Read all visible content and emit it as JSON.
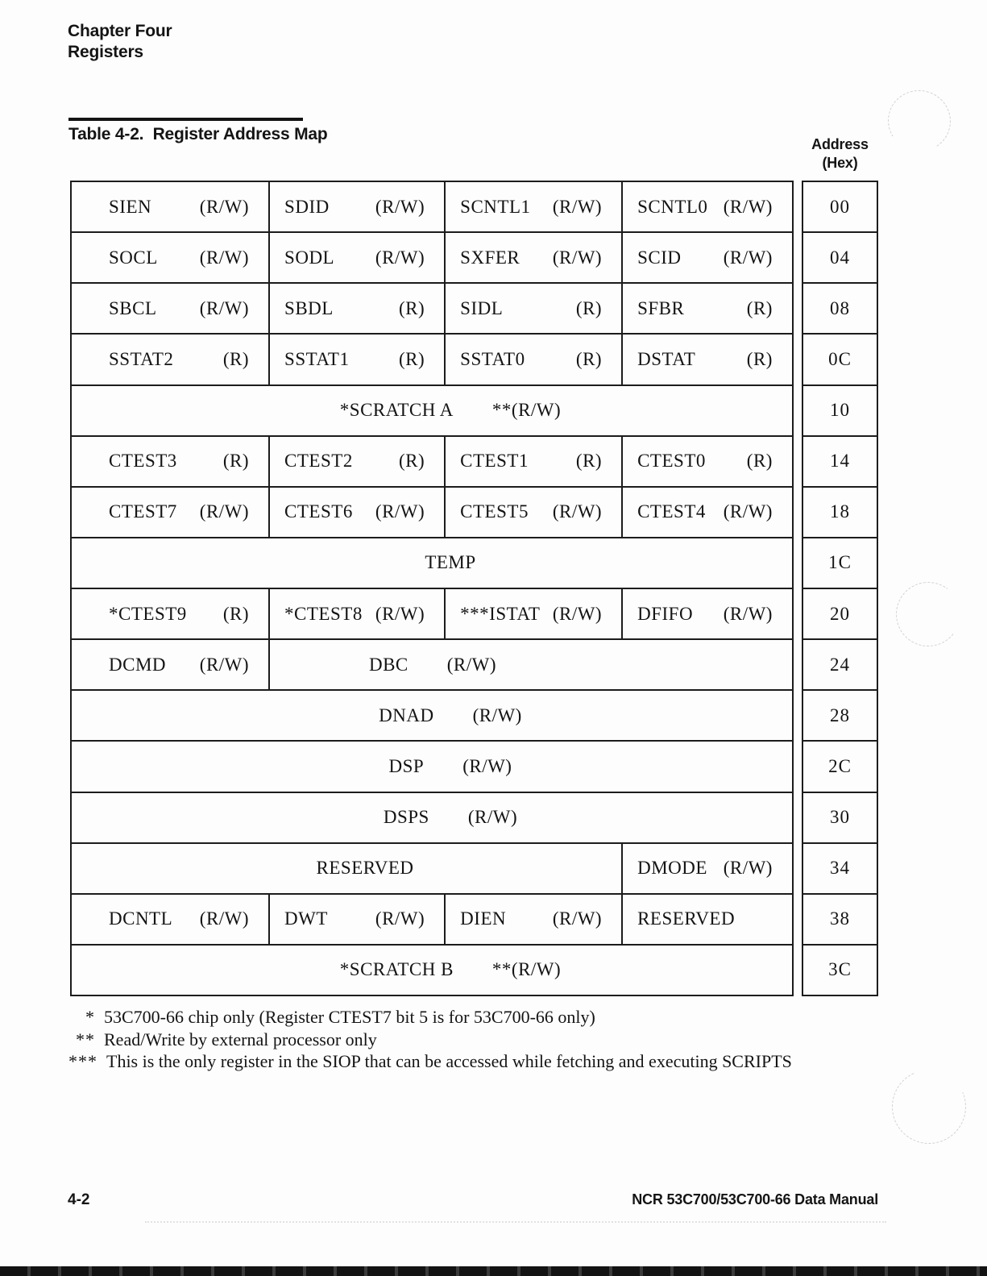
{
  "header": {
    "chapter": "Chapter Four",
    "section": "Registers"
  },
  "table": {
    "caption": "Table 4-2.  Register Address Map",
    "address_header_line1": "Address",
    "address_header_line2": "(Hex)",
    "rows": [
      {
        "address": "00",
        "cells": [
          {
            "name": "SIEN",
            "access": "(R/W)",
            "span": 1
          },
          {
            "name": "SDID",
            "access": "(R/W)",
            "span": 1
          },
          {
            "name": "SCNTL1",
            "access": "(R/W)",
            "span": 1
          },
          {
            "name": "SCNTL0",
            "access": "(R/W)",
            "span": 1
          }
        ]
      },
      {
        "address": "04",
        "cells": [
          {
            "name": "SOCL",
            "access": "(R/W)",
            "span": 1
          },
          {
            "name": "SODL",
            "access": "(R/W)",
            "span": 1
          },
          {
            "name": "SXFER",
            "access": "(R/W)",
            "span": 1
          },
          {
            "name": "SCID",
            "access": "(R/W)",
            "span": 1
          }
        ]
      },
      {
        "address": "08",
        "cells": [
          {
            "name": "SBCL",
            "access": "(R/W)",
            "span": 1
          },
          {
            "name": "SBDL",
            "access": "(R)",
            "span": 1
          },
          {
            "name": "SIDL",
            "access": "(R)",
            "span": 1
          },
          {
            "name": "SFBR",
            "access": "(R)",
            "span": 1
          }
        ]
      },
      {
        "address": "0C",
        "cells": [
          {
            "name": "SSTAT2",
            "access": "(R)",
            "span": 1
          },
          {
            "name": "SSTAT1",
            "access": "(R)",
            "span": 1
          },
          {
            "name": "SSTAT0",
            "access": "(R)",
            "span": 1
          },
          {
            "name": "DSTAT",
            "access": "(R)",
            "span": 1
          }
        ]
      },
      {
        "address": "10",
        "cells": [
          {
            "name": "*SCRATCH A",
            "access": "**(R/W)",
            "span": 4
          }
        ]
      },
      {
        "address": "14",
        "cells": [
          {
            "name": "CTEST3",
            "access": "(R)",
            "span": 1
          },
          {
            "name": "CTEST2",
            "access": "(R)",
            "span": 1
          },
          {
            "name": "CTEST1",
            "access": "(R)",
            "span": 1
          },
          {
            "name": "CTEST0",
            "access": "(R)",
            "span": 1
          }
        ]
      },
      {
        "address": "18",
        "cells": [
          {
            "name": "CTEST7",
            "access": "(R/W)",
            "span": 1
          },
          {
            "name": "CTEST6",
            "access": "(R/W)",
            "span": 1
          },
          {
            "name": "CTEST5",
            "access": "(R/W)",
            "span": 1
          },
          {
            "name": "CTEST4",
            "access": "(R/W)",
            "span": 1
          }
        ]
      },
      {
        "address": "1C",
        "cells": [
          {
            "name": "TEMP",
            "access": "",
            "span": 4
          }
        ]
      },
      {
        "address": "20",
        "cells": [
          {
            "name": "*CTEST9",
            "access": "(R)",
            "span": 1
          },
          {
            "name": "*CTEST8",
            "access": "(R/W)",
            "span": 1
          },
          {
            "name": "***ISTAT",
            "access": "(R/W)",
            "span": 1
          },
          {
            "name": "DFIFO",
            "access": "(R/W)",
            "span": 1
          }
        ]
      },
      {
        "address": "24",
        "cells": [
          {
            "name": "DCMD",
            "access": "(R/W)",
            "span": 1
          },
          {
            "name": "DBC",
            "access": "(R/W)",
            "span": 3
          }
        ]
      },
      {
        "address": "28",
        "cells": [
          {
            "name": "DNAD",
            "access": "(R/W)",
            "span": 4
          }
        ]
      },
      {
        "address": "2C",
        "cells": [
          {
            "name": "DSP",
            "access": "(R/W)",
            "span": 4
          }
        ]
      },
      {
        "address": "30",
        "cells": [
          {
            "name": "DSPS",
            "access": "(R/W)",
            "span": 4
          }
        ]
      },
      {
        "address": "34",
        "cells": [
          {
            "name": "RESERVED",
            "access": "",
            "span": 3
          },
          {
            "name": "DMODE",
            "access": "(R/W)",
            "span": 1
          }
        ]
      },
      {
        "address": "38",
        "cells": [
          {
            "name": "DCNTL",
            "access": "(R/W)",
            "span": 1
          },
          {
            "name": "DWT",
            "access": "(R/W)",
            "span": 1
          },
          {
            "name": "DIEN",
            "access": "(R/W)",
            "span": 1
          },
          {
            "name": "RESERVED",
            "access": "",
            "span": 1
          }
        ]
      },
      {
        "address": "3C",
        "cells": [
          {
            "name": "*SCRATCH B",
            "access": "**(R/W)",
            "span": 4
          }
        ]
      }
    ]
  },
  "footnotes": [
    {
      "marker": "*",
      "text": "53C700-66 chip only (Register CTEST7 bit 5 is for 53C700-66 only)"
    },
    {
      "marker": "**",
      "text": "Read/Write by external processor only"
    },
    {
      "marker": "***",
      "text": "This is the only register in the SIOP that can be accessed while fetching and executing SCRIPTS"
    }
  ],
  "footer": {
    "left": "4-2",
    "right": "NCR 53C700/53C700-66 Data Manual"
  },
  "colors": {
    "ink": "#141414",
    "paper": "#fdfdfd"
  }
}
